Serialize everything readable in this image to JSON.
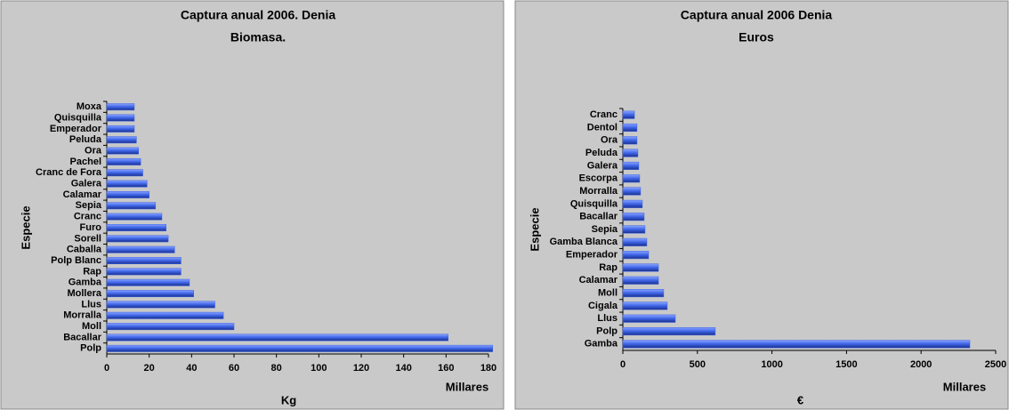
{
  "chart_data": [
    {
      "type": "bar",
      "orientation": "horizontal",
      "title": "Captura anual 2006. Denia",
      "subtitle": "Biomasa.",
      "x_label": "Kg",
      "y_label": "Especie",
      "annotation": "Millares",
      "color": "#3d63e6",
      "categories": [
        "Polp",
        "Bacallar",
        "Moll",
        "Morralla",
        "Llus",
        "Mollera",
        "Gamba",
        "Rap",
        "Polp Blanc",
        "Caballa",
        "Sorell",
        "Furo",
        "Cranc",
        "Sepia",
        "Calamar",
        "Galera",
        "Cranc de Fora",
        "Pachel",
        "Ora",
        "Peluda",
        "Emperador",
        "Quisquilla",
        "Moxa"
      ],
      "values": [
        182,
        161,
        60,
        55,
        51,
        41,
        39,
        35,
        35,
        32,
        29,
        28,
        26,
        23,
        20,
        19,
        17,
        16,
        15,
        14,
        13,
        13,
        13
      ],
      "xlim": [
        0,
        180
      ],
      "xticks": [
        0,
        20,
        40,
        60,
        80,
        100,
        120,
        140,
        160,
        180
      ]
    },
    {
      "type": "bar",
      "orientation": "horizontal",
      "title": "Captura anual 2006 Denia",
      "subtitle": "Euros",
      "x_label": "€",
      "y_label": "Especie",
      "annotation": "Millares",
      "color": "#3d63e6",
      "categories": [
        "Gamba",
        "Polp",
        "Llus",
        "Cigala",
        "Moll",
        "Calamar",
        "Rap",
        "Emperador",
        "Gamba Blanca",
        "Sepia",
        "Bacallar",
        "Quisquilla",
        "Morralla",
        "Escorpa",
        "Galera",
        "Peluda",
        "Ora",
        "Dentol",
        "Cranc"
      ],
      "values": [
        2327,
        620,
        352,
        298,
        274,
        239,
        239,
        173,
        161,
        149,
        143,
        131,
        119,
        113,
        107,
        101,
        95,
        95,
        78
      ],
      "xlim": [
        0,
        2500
      ],
      "xticks": [
        0,
        500,
        1000,
        1500,
        2000,
        2500
      ]
    }
  ]
}
